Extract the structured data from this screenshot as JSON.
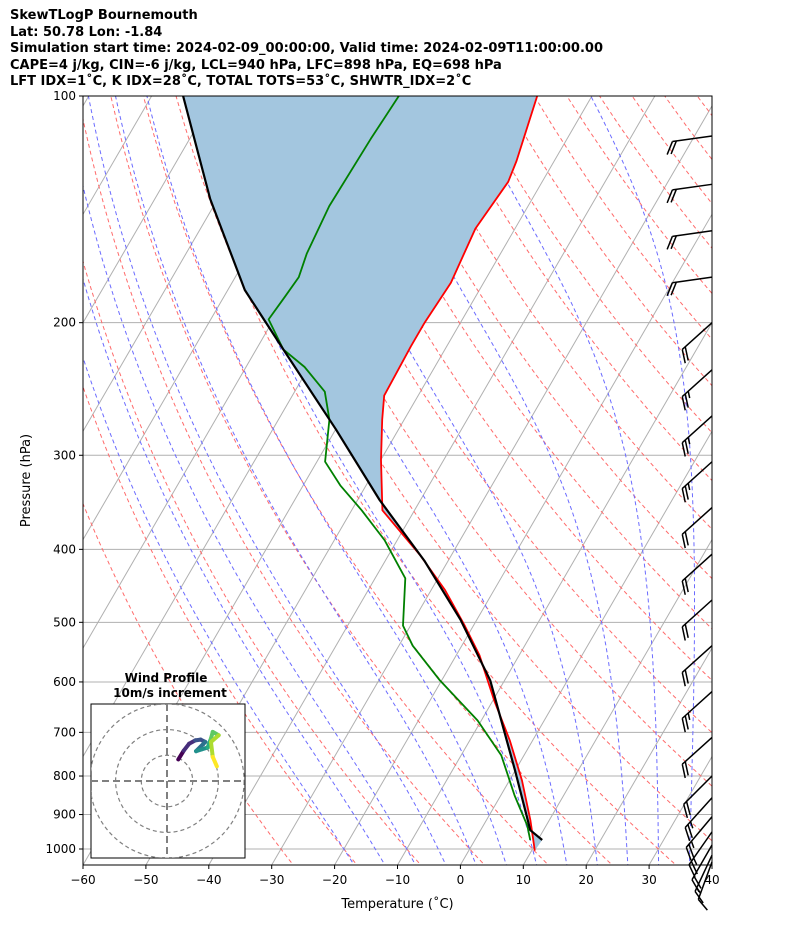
{
  "title": {
    "line1": "SkewTLogP Bournemouth",
    "line2": "Lat: 50.78   Lon: -1.84",
    "line3": "Simulation start time: 2024-02-09_00:00:00, Valid time: 2024-02-09T11:00:00.00",
    "line4": "CAPE=4 j/kg, CIN=-6 j/kg, LCL=940 hPa, LFC=898 hPa, EQ=698 hPa",
    "line5": "LFT IDX=1˚C, K IDX=28˚C, TOTAL TOTS=53˚C, SHWTR_IDX=2˚C"
  },
  "chart_data": [
    {
      "type": "line",
      "subtype": "skewT-logP",
      "xlabel": "Temperature (˚C)",
      "ylabel": "Pressure (hPa)",
      "xlim": [
        -60,
        40
      ],
      "ylim": [
        1050,
        100
      ],
      "xticks": [
        "−60",
        "−50",
        "−40",
        "−30",
        "−20",
        "−10",
        "0",
        "10",
        "20",
        "30",
        "40"
      ],
      "xtick_values": [
        -60,
        -50,
        -40,
        -30,
        -20,
        -10,
        0,
        10,
        20,
        30,
        40
      ],
      "yticks": [
        "100",
        "200",
        "300",
        "400",
        "500",
        "600",
        "700",
        "800",
        "900",
        "1000"
      ],
      "ytick_values": [
        100,
        200,
        300,
        400,
        500,
        600,
        700,
        800,
        900,
        1000
      ],
      "grid": true,
      "colors": {
        "temperature": "#ff0000",
        "dewpoint": "#008000",
        "parcel": "#000000",
        "cape_fill": "#a3c6df",
        "isotherm": "#b0b0b0",
        "dry_adiabat": "#ff6b6b",
        "moist_adiabat": "#6b6bff"
      },
      "series": [
        {
          "name": "temperature",
          "p": [
            100,
            122,
            130,
            150,
            177,
            200,
            215,
            250,
            269,
            304,
            355,
            407,
            453,
            505,
            553,
            635,
            718,
            811,
            916,
            1005
          ],
          "T": [
            -58.7,
            -56,
            -55.4,
            -56.3,
            -55.2,
            -55.7,
            -55.7,
            -55.4,
            -53.5,
            -50,
            -45.1,
            -35,
            -27.8,
            -21.4,
            -16.3,
            -9.8,
            -3.6,
            2,
            7,
            10.5
          ]
        },
        {
          "name": "dewpoint",
          "p": [
            100,
            114,
            140,
            162,
            174,
            185,
            198,
            217,
            229,
            247,
            269,
            306,
            329,
            355,
            389,
            437,
            505,
            537,
            597,
            675,
            751,
            849,
            931,
            973
          ],
          "T": [
            -80.7,
            -81.2,
            -81.6,
            -80.8,
            -79.9,
            -80.3,
            -80.8,
            -75.7,
            -70.7,
            -65.2,
            -61.9,
            -58.7,
            -54.1,
            -48.4,
            -42,
            -35.2,
            -31.2,
            -27.8,
            -20.3,
            -10.6,
            -3.6,
            2.2,
            7,
            8.8
          ]
        },
        {
          "name": "parcel",
          "p": [
            100,
            137,
            181,
            217,
            277,
            344,
            414,
            496,
            597,
            787,
            944,
            973
          ],
          "T": [
            -115,
            -101.2,
            -87.3,
            -75.7,
            -60,
            -46.5,
            -33.8,
            -22.6,
            -12.3,
            0,
            7.9,
            10.7
          ]
        }
      ],
      "wind_barbs": {
        "units": "kt",
        "p": [
          113,
          131,
          151,
          174,
          200,
          231,
          266,
          306,
          352,
          406,
          467,
          537,
          618,
          711,
          800,
          855,
          906,
          949,
          988,
          1019,
          1040
        ],
        "dir": [
          262,
          262,
          262,
          262,
          228,
          228,
          228,
          228,
          228,
          228,
          228,
          228,
          228,
          228,
          225,
          222,
          220,
          215,
          210,
          205,
          200
        ],
        "spd": [
          20,
          20,
          20,
          20,
          20,
          25,
          25,
          25,
          20,
          20,
          20,
          20,
          25,
          20,
          20,
          25,
          25,
          25,
          20,
          15,
          10
        ]
      }
    },
    {
      "type": "line",
      "subtype": "hodograph",
      "title": "Wind Profile",
      "subtitle": "10m/s increment",
      "ring_step": 10,
      "rings": [
        10,
        20,
        30
      ],
      "u": [
        4.4,
        6.5,
        8.6,
        11,
        13.1,
        14.9,
        11.3,
        13.5,
        15.8,
        17.1,
        17.8,
        20.1,
        17.1,
        17.8,
        19.4
      ],
      "v": [
        8.4,
        11.8,
        14.5,
        15.8,
        16.1,
        15.2,
        11.6,
        12.3,
        13,
        16.5,
        19.1,
        17.8,
        15.2,
        9.4,
        5.7
      ]
    }
  ]
}
